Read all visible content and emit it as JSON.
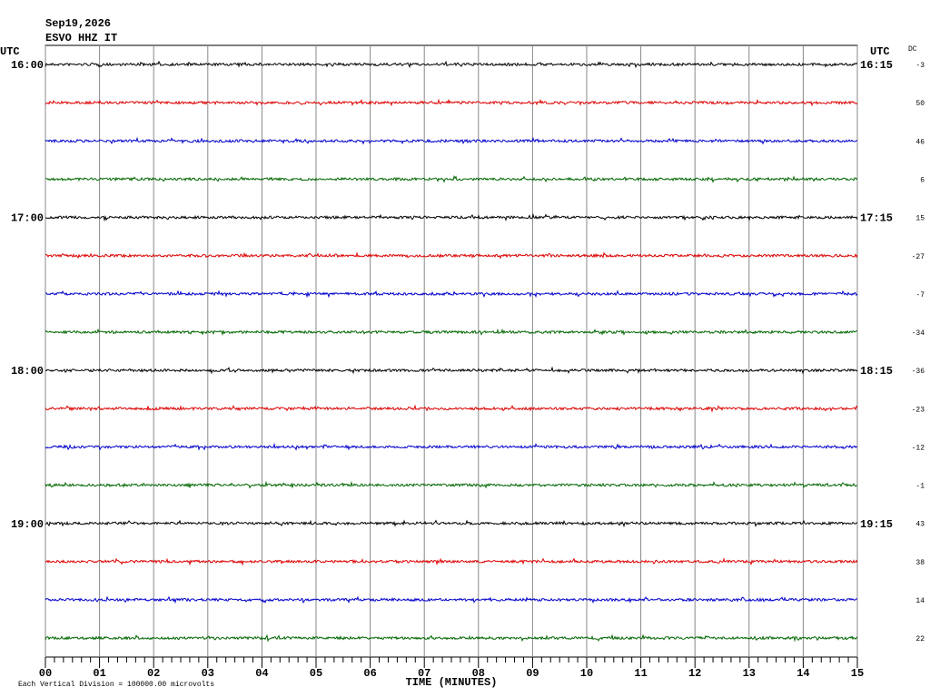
{
  "header": {
    "date": "Sep19,2026",
    "station": "ESVO HHZ IT"
  },
  "left_axis": {
    "unit": "UTC",
    "labels": [
      "16:00",
      "17:00",
      "18:00",
      "19:00"
    ]
  },
  "right_axis": {
    "unit": "UTC",
    "labels": [
      "16:15",
      "17:15",
      "18:15",
      "19:15"
    ]
  },
  "dc": {
    "label": "DC",
    "values": [
      -3,
      50,
      46,
      6,
      15,
      -27,
      -7,
      -34,
      -36,
      -23,
      -12,
      -1,
      43,
      38,
      14,
      22
    ]
  },
  "trace_colors": [
    "#000000",
    "#dd0000",
    "#0000cc",
    "#006600"
  ],
  "x_axis": {
    "title": "TIME (MINUTES)",
    "ticks": [
      "00",
      "01",
      "02",
      "03",
      "04",
      "05",
      "06",
      "07",
      "08",
      "09",
      "10",
      "11",
      "12",
      "13",
      "14",
      "15"
    ]
  },
  "footer": {
    "note": "Each Vertical Division = 100000.00 microvolts"
  }
}
